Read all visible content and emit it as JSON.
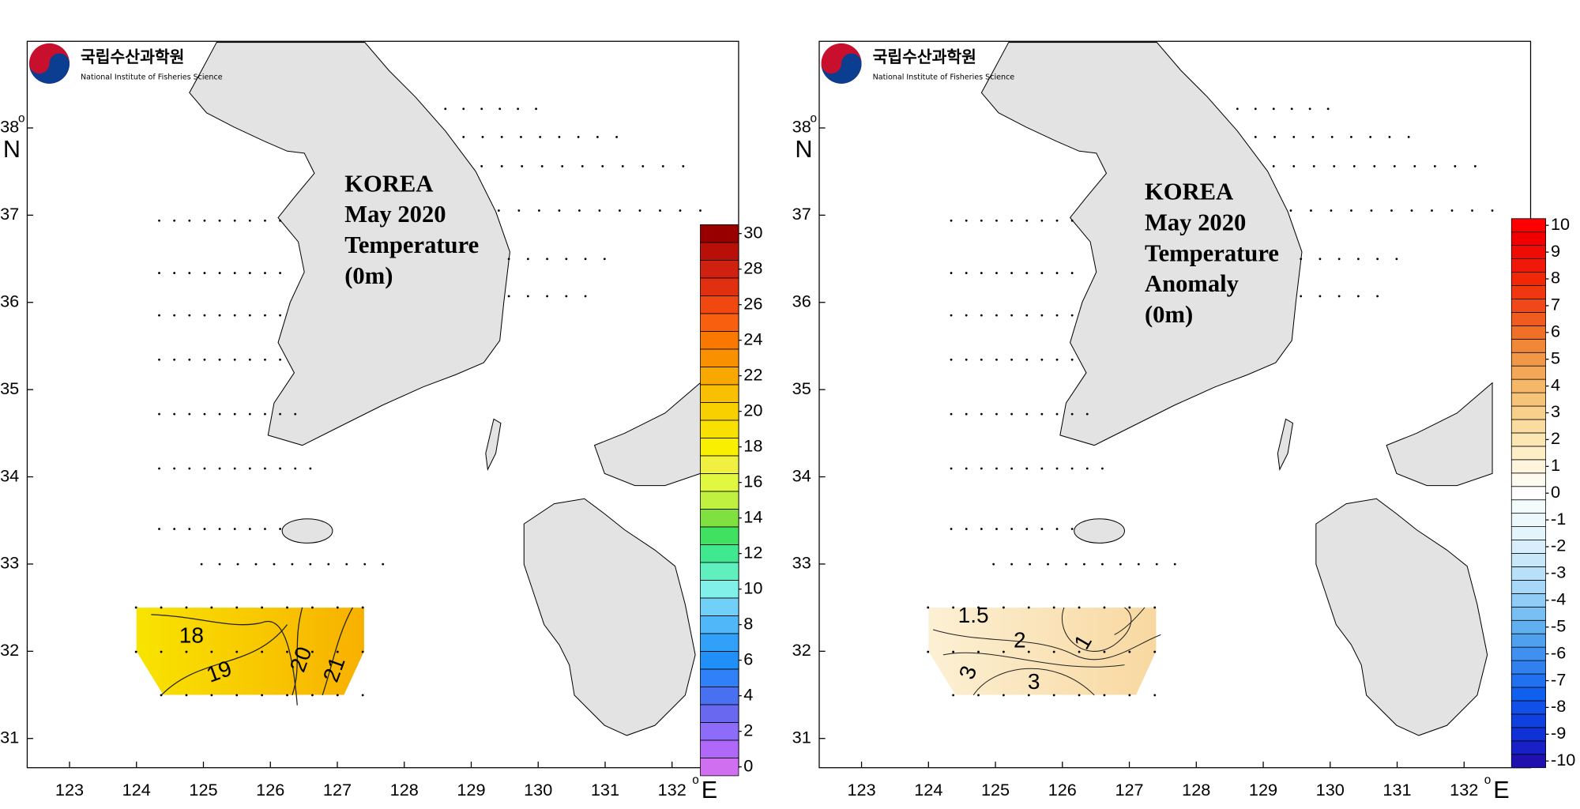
{
  "panels": [
    {
      "type": "map",
      "logo": {
        "name": "국립수산과학원",
        "subtitle": "National Institute of Fisheries Science"
      },
      "title_lines": [
        "KOREA",
        "May 2020",
        "Temperature",
        "(0m)"
      ],
      "lon_ticks": [
        123,
        124,
        125,
        126,
        127,
        128,
        129,
        130,
        131,
        132
      ],
      "lat_ticks": [
        31,
        32,
        33,
        34,
        35,
        36,
        37,
        38
      ],
      "lon_degree": "o",
      "lon_unit": "E",
      "lat_degree": "o",
      "lat_unit": "N",
      "colorbar": {
        "ticks": [
          0,
          2,
          4,
          6,
          8,
          10,
          12,
          14,
          16,
          18,
          20,
          22,
          24,
          26,
          28,
          30
        ],
        "colors": [
          "#d070f0",
          "#b068f8",
          "#8c6cf8",
          "#6868f0",
          "#4870f0",
          "#3080f8",
          "#2090f8",
          "#30a0f8",
          "#50b8f8",
          "#70d0f8",
          "#80f0e8",
          "#60f0c0",
          "#40e890",
          "#40e060",
          "#80e040",
          "#c0f040",
          "#e0f840",
          "#f0f040",
          "#f8f000",
          "#f8e000",
          "#f8d000",
          "#f8c000",
          "#f8a800",
          "#f89000",
          "#f87800",
          "#f86010",
          "#f04810",
          "#e03010",
          "#d02010",
          "#b81008",
          "#980000"
        ]
      },
      "field_colors": [
        "#f8e400",
        "#f8b000"
      ],
      "contour_labels": [
        18,
        19,
        20,
        21
      ]
    },
    {
      "type": "map",
      "logo": {
        "name": "국립수산과학원",
        "subtitle": "National Institute of Fisheries Science"
      },
      "title_lines": [
        "KOREA",
        "May 2020",
        "Temperature",
        "Anomaly",
        "(0m)"
      ],
      "lon_ticks": [
        123,
        124,
        125,
        126,
        127,
        128,
        129,
        130,
        131,
        132
      ],
      "lat_ticks": [
        31,
        32,
        33,
        34,
        35,
        36,
        37,
        38
      ],
      "lon_degree": "o",
      "lon_unit": "E",
      "lat_degree": "o",
      "lat_unit": "N",
      "colorbar": {
        "ticks": [
          -10,
          -9,
          -8,
          -7,
          -6,
          -5,
          -4,
          -3,
          -2,
          -1,
          0,
          1,
          2,
          3,
          4,
          5,
          6,
          7,
          8,
          9,
          10
        ],
        "colors": [
          "#2010b0",
          "#1820c8",
          "#1030d8",
          "#1040e0",
          "#1050e8",
          "#1060f0",
          "#2070f0",
          "#3080f0",
          "#4090f0",
          "#50a0f0",
          "#60b0f0",
          "#78c0f4",
          "#90ccf6",
          "#a8d8f8",
          "#b8e0f8",
          "#c8e8fa",
          "#d8eefa",
          "#e4f4fc",
          "#ecf8fc",
          "#f4fbfd",
          "#ffffff",
          "#fffaf0",
          "#fff4dc",
          "#fdeec8",
          "#fce6b4",
          "#fadca0",
          "#f8d08c",
          "#f6c478",
          "#f4b868",
          "#f2a858",
          "#f09848",
          "#f08838",
          "#f07028",
          "#f05c20",
          "#f04818",
          "#f03810",
          "#f02808",
          "#f01808",
          "#f00c04",
          "#f00000",
          "#ff0000"
        ]
      },
      "field_colors": [
        "#fcf0d4",
        "#f8d8a0"
      ],
      "contour_labels": [
        1.5,
        2,
        1,
        3,
        3
      ]
    }
  ]
}
